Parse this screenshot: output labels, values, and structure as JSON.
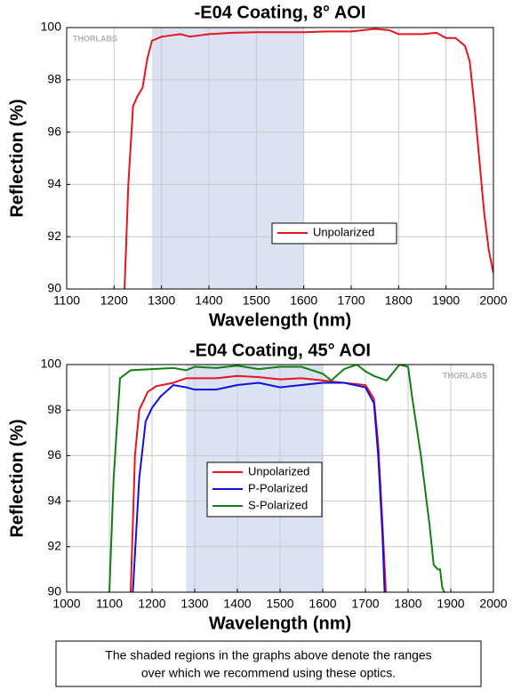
{
  "chart_data": [
    {
      "type": "line",
      "title": "-E04 Coating, 8° AOI",
      "x_label": "Wavelength (nm)",
      "y_label": "Reflection (%)",
      "watermark": "THORLABS",
      "xlim": [
        1100,
        2000
      ],
      "xticks": [
        1100,
        1200,
        1300,
        1400,
        1500,
        1600,
        1700,
        1800,
        1900,
        2000
      ],
      "ylim": [
        90,
        100
      ],
      "yticks": [
        90,
        92,
        94,
        96,
        98,
        100
      ],
      "grid": true,
      "shaded_range": [
        1280,
        1600
      ],
      "shade_color": "#dbe3f3",
      "series": [
        {
          "name": "Unpolarized",
          "color": "#e8141e",
          "x": [
            1222,
            1230,
            1240,
            1250,
            1260,
            1270,
            1280,
            1300,
            1320,
            1340,
            1360,
            1380,
            1400,
            1450,
            1500,
            1550,
            1600,
            1650,
            1700,
            1750,
            1780,
            1800,
            1850,
            1880,
            1900,
            1920,
            1940,
            1950,
            1960,
            1970,
            1980,
            1990,
            2000
          ],
          "values": [
            90,
            94,
            97,
            97.4,
            97.7,
            98.8,
            99.5,
            99.65,
            99.7,
            99.75,
            99.65,
            99.7,
            99.75,
            99.8,
            99.82,
            99.82,
            99.82,
            99.85,
            99.85,
            99.95,
            99.9,
            99.75,
            99.75,
            99.8,
            99.6,
            99.6,
            99.3,
            98.7,
            97,
            95,
            93,
            91.5,
            90.6
          ]
        }
      ]
    },
    {
      "type": "line",
      "title": "-E04 Coating, 45° AOI",
      "x_label": "Wavelength (nm)",
      "y_label": "Reflection (%)",
      "watermark": "THORLABS",
      "xlim": [
        1000,
        2000
      ],
      "xticks": [
        1000,
        1100,
        1200,
        1300,
        1400,
        1500,
        1600,
        1700,
        1800,
        1900,
        2000
      ],
      "ylim": [
        90,
        100
      ],
      "yticks": [
        90,
        92,
        94,
        96,
        98,
        100
      ],
      "grid": true,
      "shaded_range": [
        1280,
        1600
      ],
      "shade_color": "#dbe3f3",
      "series": [
        {
          "name": "Unpolarized",
          "color": "#e8141e",
          "x": [
            1150,
            1160,
            1170,
            1190,
            1210,
            1250,
            1280,
            1300,
            1350,
            1400,
            1450,
            1500,
            1550,
            1600,
            1650,
            1700,
            1720,
            1730,
            1740,
            1748
          ],
          "values": [
            90,
            96,
            98,
            98.8,
            99.05,
            99.2,
            99.4,
            99.4,
            99.4,
            99.5,
            99.45,
            99.35,
            99.4,
            99.3,
            99.2,
            99.1,
            98.5,
            96.5,
            93,
            90
          ]
        },
        {
          "name": "P-Polarized",
          "color": "#1010e0",
          "x": [
            1155,
            1170,
            1185,
            1200,
            1220,
            1250,
            1280,
            1300,
            1350,
            1400,
            1450,
            1500,
            1550,
            1600,
            1650,
            1700,
            1720,
            1730,
            1740,
            1745
          ],
          "values": [
            90,
            95,
            97.5,
            98.1,
            98.6,
            99.1,
            99.0,
            98.9,
            98.9,
            99.1,
            99.2,
            99.0,
            99.1,
            99.2,
            99.2,
            99.0,
            98.3,
            96,
            92.5,
            90
          ]
        },
        {
          "name": "S-Polarized",
          "color": "#108010",
          "x": [
            1100,
            1110,
            1125,
            1150,
            1200,
            1250,
            1280,
            1300,
            1350,
            1400,
            1450,
            1500,
            1550,
            1600,
            1620,
            1650,
            1680,
            1700,
            1720,
            1750,
            1780,
            1800,
            1810,
            1830,
            1850,
            1860,
            1870,
            1875,
            1880,
            1885
          ],
          "values": [
            90,
            95,
            99.4,
            99.75,
            99.8,
            99.85,
            99.75,
            99.9,
            99.85,
            99.95,
            99.8,
            99.9,
            99.9,
            99.6,
            99.3,
            99.8,
            100,
            99.7,
            99.5,
            99.3,
            100,
            99.9,
            98.5,
            96,
            93,
            91.2,
            91.0,
            91.0,
            90.2,
            90
          ]
        }
      ]
    }
  ],
  "caption": [
    "The shaded regions in the graphs above denote the ranges",
    "over which we recommend using these optics."
  ]
}
